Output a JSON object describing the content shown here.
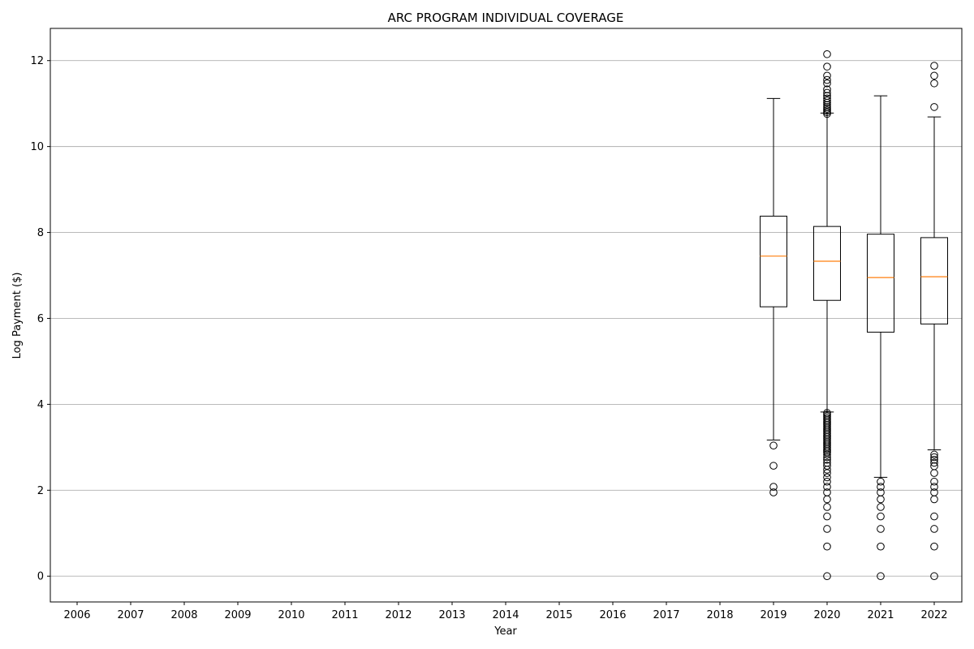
{
  "chart_data": {
    "type": "box",
    "title": "ARC PROGRAM INDIVIDUAL COVERAGE",
    "xlabel": "Year",
    "ylabel": "Log Payment ($)",
    "ylim": [
      -0.6,
      12.75
    ],
    "yticks": [
      0,
      2,
      4,
      6,
      8,
      10,
      12
    ],
    "grid": "horizontal",
    "categories": [
      "2006",
      "2007",
      "2008",
      "2009",
      "2010",
      "2011",
      "2012",
      "2013",
      "2014",
      "2015",
      "2016",
      "2017",
      "2018",
      "2019",
      "2020",
      "2021",
      "2022"
    ],
    "boxes": [
      {
        "category": "2019",
        "whisker_low": 3.17,
        "q1": 6.27,
        "median": 7.45,
        "q3": 8.38,
        "whisker_high": 11.12,
        "outliers": [
          3.04,
          2.57,
          2.08,
          1.95
        ]
      },
      {
        "category": "2020",
        "whisker_low": 3.82,
        "q1": 6.42,
        "median": 7.33,
        "q3": 8.14,
        "whisker_high": 10.78,
        "outliers": [
          12.15,
          11.86,
          11.65,
          11.55,
          11.47,
          11.33,
          11.25,
          11.18,
          11.12,
          11.07,
          11.02,
          10.97,
          10.92,
          10.88,
          10.84,
          10.8,
          10.76,
          3.8,
          3.76,
          3.72,
          3.68,
          3.64,
          3.6,
          3.56,
          3.52,
          3.48,
          3.44,
          3.4,
          3.36,
          3.32,
          3.28,
          3.24,
          3.2,
          3.16,
          3.12,
          3.08,
          3.04,
          3.0,
          2.96,
          2.92,
          2.88,
          2.83,
          2.77,
          2.71,
          2.64,
          2.57,
          2.48,
          2.4,
          2.3,
          2.2,
          2.08,
          1.95,
          1.79,
          1.61,
          1.39,
          1.1,
          0.69,
          0
        ]
      },
      {
        "category": "2021",
        "whisker_low": 2.3,
        "q1": 5.68,
        "median": 6.95,
        "q3": 7.96,
        "whisker_high": 11.18,
        "outliers": [
          2.2,
          2.08,
          1.95,
          1.79,
          1.61,
          1.39,
          1.1,
          0.69,
          0
        ]
      },
      {
        "category": "2022",
        "whisker_low": 2.94,
        "q1": 5.87,
        "median": 6.97,
        "q3": 7.88,
        "whisker_high": 10.69,
        "outliers": [
          11.88,
          11.65,
          11.47,
          10.92,
          2.83,
          2.77,
          2.71,
          2.64,
          2.56,
          2.4,
          2.2,
          2.08,
          1.95,
          1.79,
          1.39,
          1.1,
          0.69,
          0
        ]
      }
    ],
    "colors": {
      "box": "#000000",
      "median": "#ff7f0e",
      "grid": "#b0b0b0"
    }
  }
}
